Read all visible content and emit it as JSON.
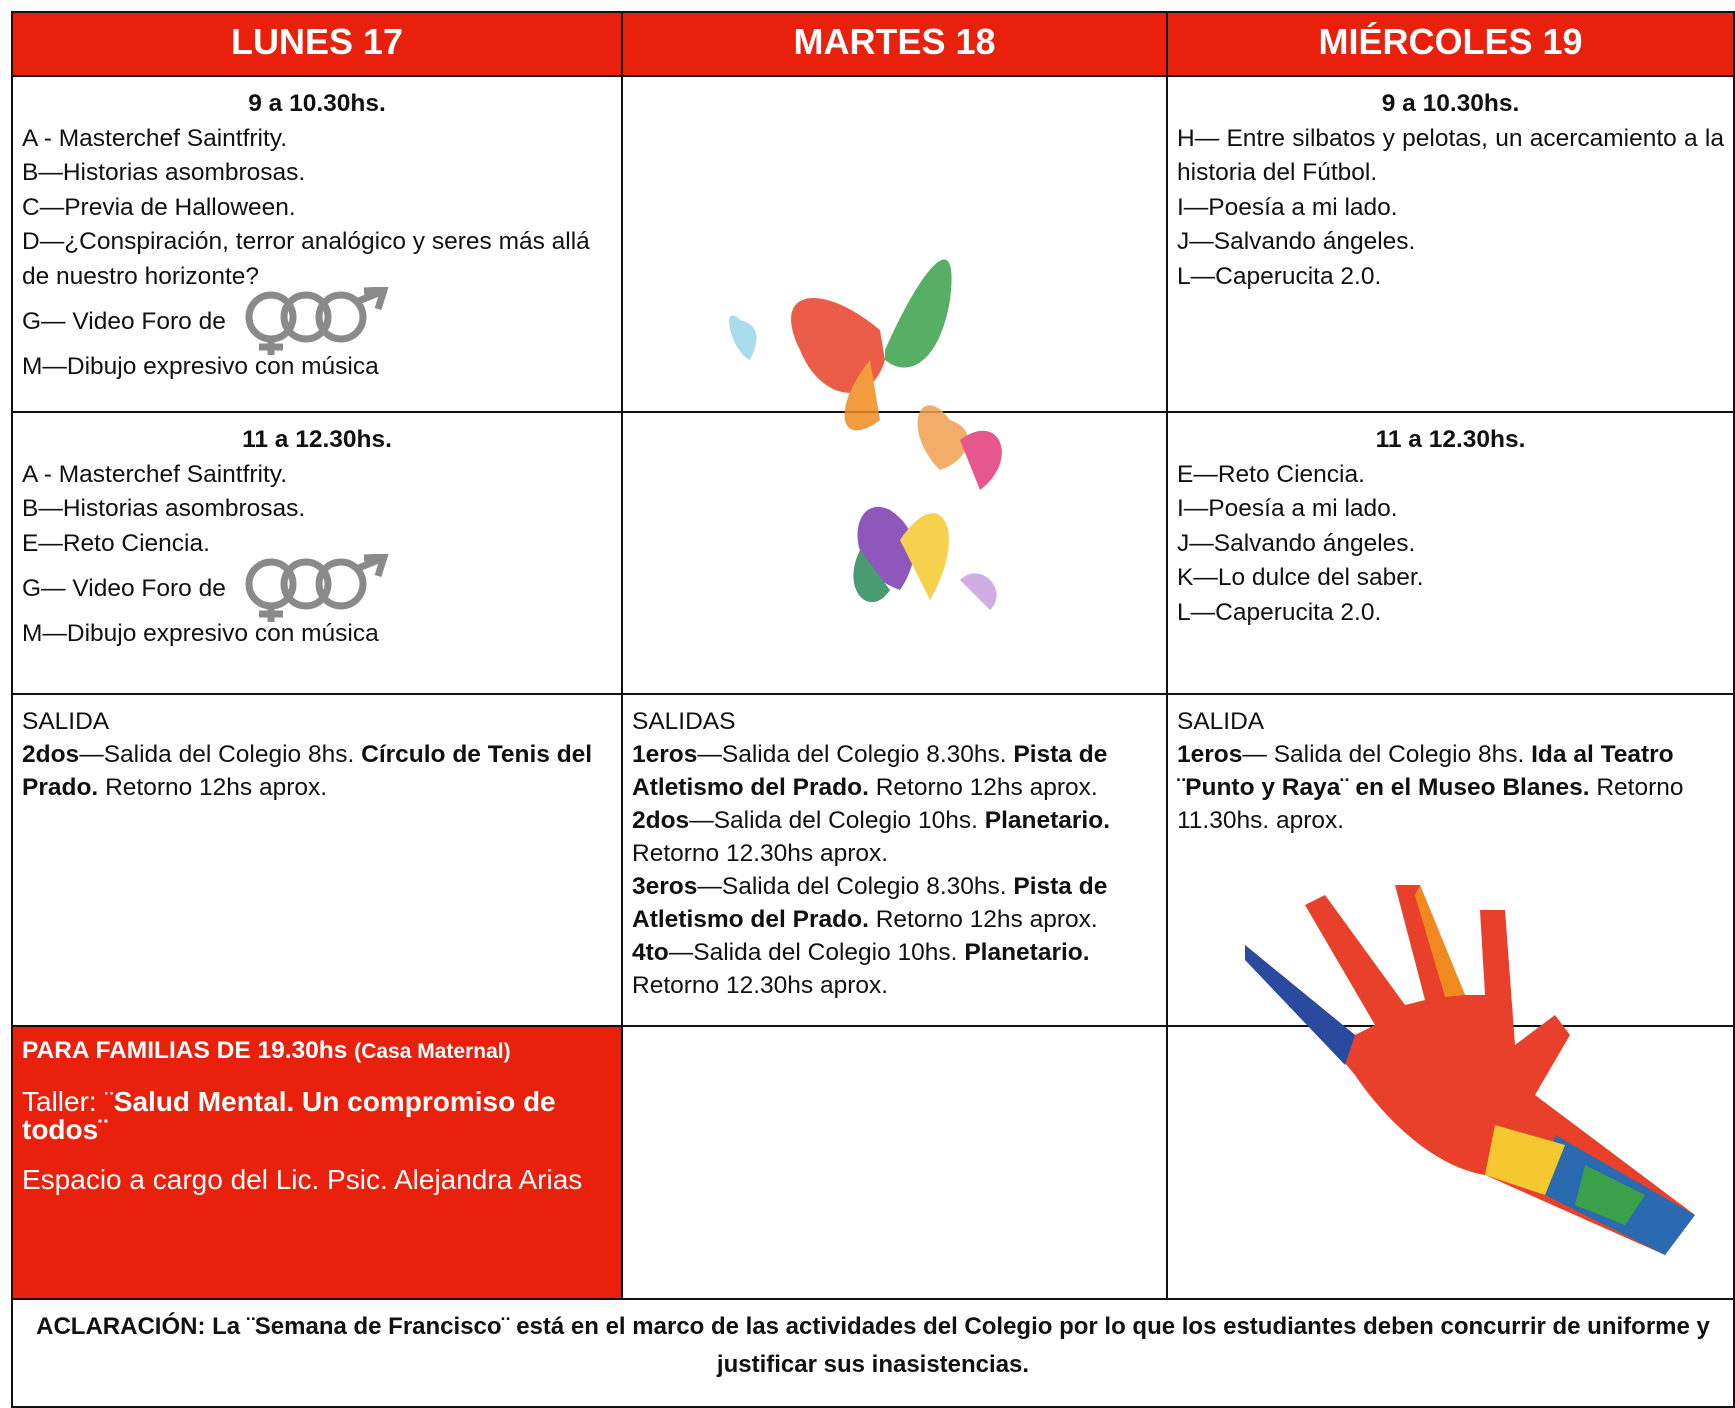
{
  "header": {
    "days": [
      "LUNES 17",
      "MARTES 18",
      "MIÉRCOLES 19"
    ]
  },
  "morning": {
    "lunes": {
      "time": "9 a 10.30hs.",
      "items": [
        "A - Masterchef Saintfrity.",
        "B—Historias asombrosas.",
        "C—Previa de Halloween.",
        "D—¿Conspiración, terror analógico y seres más allá de nuestro horizonte?",
        "G— Video Foro de",
        "M—Dibujo expresivo con música"
      ]
    },
    "miercoles": {
      "time": "9 a 10.30hs.",
      "items": [
        "H— Entre silbatos y pelotas, un acercamiento a la historia del Fútbol.",
        "I—Poesía a mi lado.",
        "J—Salvando ángeles.",
        "L—Caperucita 2.0."
      ]
    }
  },
  "midday": {
    "lunes": {
      "time": "11 a 12.30hs.",
      "items": [
        "A - Masterchef Saintfrity.",
        "B—Historias asombrosas.",
        "E—Reto Ciencia.",
        "G— Video Foro de",
        "M—Dibujo expresivo con música"
      ]
    },
    "miercoles": {
      "time": "11 a 12.30hs.",
      "items": [
        "E—Reto Ciencia.",
        "I—Poesía a mi lado.",
        "J—Salvando ángeles.",
        "K—Lo dulce del saber.",
        "L—Caperucita 2.0."
      ]
    }
  },
  "salidas": {
    "lunes": {
      "title": "SALIDA",
      "items": [
        {
          "group": "2dos",
          "text": "—Salida del Colegio 8hs.",
          "place": "Círculo de Tenis del Prado.",
          "ret": "Retorno 12hs aprox."
        }
      ]
    },
    "martes": {
      "title": "SALIDAS",
      "items": [
        {
          "group": "1eros",
          "text": "—Salida del Colegio 8.30hs.",
          "place": "Pista de Atletismo del Prado.",
          "ret": "Retorno 12hs aprox."
        },
        {
          "group": "2dos",
          "text": "—Salida del Colegio 10hs.",
          "place": "Planetario.",
          "ret": "Retorno 12.30hs aprox."
        },
        {
          "group": "3eros",
          "text": "—Salida del Colegio 8.30hs.",
          "place": "Pista de Atletismo del Prado.",
          "ret": "Retorno 12hs aprox."
        },
        {
          "group": "4to",
          "text": "—Salida del Colegio 10hs.",
          "place": "Planetario.",
          "ret": "Retorno 12.30hs aprox."
        }
      ]
    },
    "miercoles": {
      "title": "SALIDA",
      "items": [
        {
          "group": "1eros",
          "text": "— Salida del Colegio 8hs.",
          "place": "Ida al Teatro ¨Punto y Raya¨ en el Museo Blanes.",
          "ret": "Retorno 11.30hs. aprox."
        }
      ]
    }
  },
  "familias": {
    "title": "PARA FAMILIAS DE 19.30hs",
    "place": "(Casa Maternal)",
    "taller_label": "Taller: ¨",
    "taller": "Salud Mental. Un compromiso de todos¨",
    "note": "Espacio a cargo del Lic. Psic. Alejandra Arias"
  },
  "footer": {
    "text": "ACLARACIÓN: La ¨Semana de Francisco¨ está en el marco de las actividades del Colegio por lo que los estudiantes deben concurrir de uniforme y justificar sus inasistencias."
  }
}
